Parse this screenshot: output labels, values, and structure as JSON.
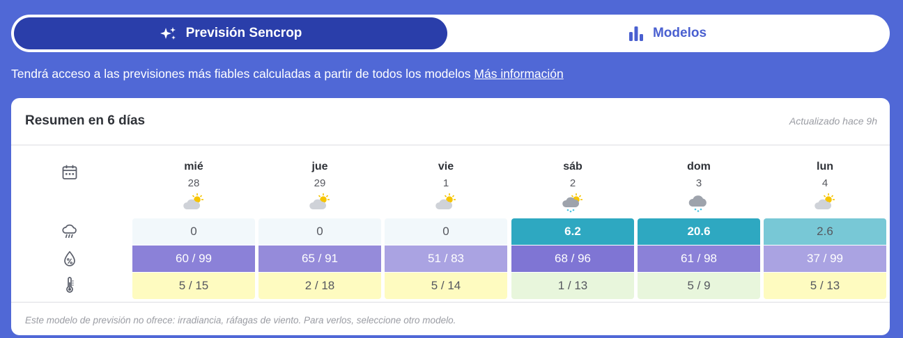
{
  "tabs": {
    "active": {
      "label": "Previsión Sencrop",
      "icon": "sparkles-icon"
    },
    "inactive": {
      "label": "Modelos",
      "icon": "bar-chart-icon"
    }
  },
  "info": {
    "text": "Tendrá acceso a las previsiones más fiables calculadas a partir de todos los modelos ",
    "link": "Más información"
  },
  "summary": {
    "title": "Resumen en 6 días",
    "updated": "Actualizado hace 9h",
    "footer": "Este modelo de previsión no ofrece: irradiancia, ráfagas de viento. Para verlos, seleccione otro modelo.",
    "row_icons": [
      "calendar-icon",
      "rain-cloud-icon",
      "humidity-drop-icon",
      "thermometer-icon"
    ],
    "days": [
      {
        "name": "mié",
        "date": "28",
        "weather": "partly-cloudy",
        "rain": "0",
        "humidity": "60 / 99",
        "temp": "5 / 15",
        "colors": {
          "rain": "#f2f8fb",
          "rain_text": "#55575e",
          "humidity": "#8b81d8",
          "humidity_text": "#ffffff",
          "temp": "#fefbc0",
          "temp_text": "#55575e"
        }
      },
      {
        "name": "jue",
        "date": "29",
        "weather": "partly-cloudy",
        "rain": "0",
        "humidity": "65 / 91",
        "temp": "2 / 18",
        "colors": {
          "rain": "#f2f8fb",
          "rain_text": "#55575e",
          "humidity": "#958bda",
          "humidity_text": "#ffffff",
          "temp": "#fefbc0",
          "temp_text": "#55575e"
        }
      },
      {
        "name": "vie",
        "date": "1",
        "weather": "partly-cloudy",
        "rain": "0",
        "humidity": "51 / 83",
        "temp": "5 / 14",
        "colors": {
          "rain": "#f2f8fb",
          "rain_text": "#55575e",
          "humidity": "#aaa3e2",
          "humidity_text": "#ffffff",
          "temp": "#fefbc0",
          "temp_text": "#55575e"
        }
      },
      {
        "name": "sáb",
        "date": "2",
        "weather": "sun-cloud-rain",
        "rain": "6.2",
        "humidity": "68 / 96",
        "temp": "1 / 13",
        "colors": {
          "rain": "#2ea8c1",
          "rain_text": "#ffffff",
          "humidity": "#7f75d4",
          "humidity_text": "#ffffff",
          "temp": "#e8f6dc",
          "temp_text": "#55575e"
        }
      },
      {
        "name": "dom",
        "date": "3",
        "weather": "cloud-rain",
        "rain": "20.6",
        "humidity": "61 / 98",
        "temp": "5 / 9",
        "colors": {
          "rain": "#2ea8c1",
          "rain_text": "#ffffff",
          "humidity": "#8b81d8",
          "humidity_text": "#ffffff",
          "temp": "#e8f6dc",
          "temp_text": "#55575e"
        }
      },
      {
        "name": "lun",
        "date": "4",
        "weather": "partly-cloudy",
        "rain": "2.6",
        "humidity": "37 / 99",
        "temp": "5 / 13",
        "colors": {
          "rain": "#78c8d6",
          "rain_text": "#55575e",
          "humidity": "#aaa3e2",
          "humidity_text": "#ffffff",
          "temp": "#fefbc0",
          "temp_text": "#55575e"
        }
      }
    ]
  },
  "colors": {
    "background": "#5068d6",
    "active_tab": "#2a3eaa",
    "accent": "#4a60d0"
  }
}
